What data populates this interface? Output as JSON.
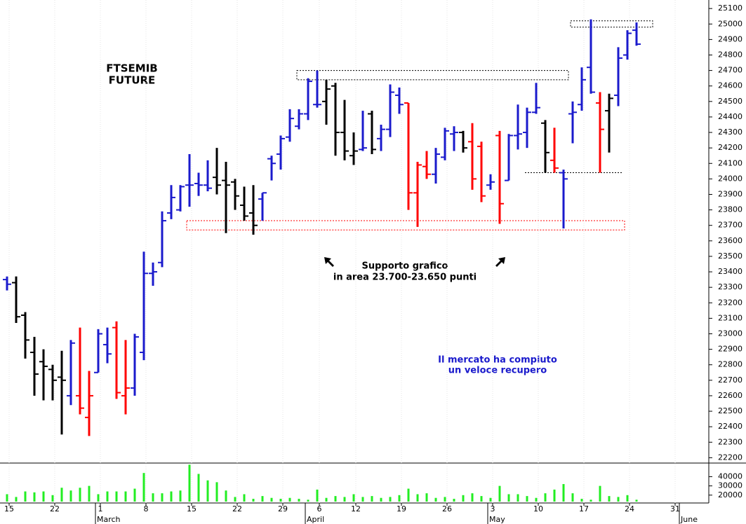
{
  "chart_data": [
    {
      "type": "ohlc",
      "title_lines": [
        "FTSEMIB",
        "FUTURE"
      ],
      "annotations": [
        {
          "lines": [
            "Supporto grafico",
            "in area 23.700-23.650 punti"
          ],
          "color": "#000000"
        },
        {
          "lines": [
            "Il mercato ha compiuto",
            "un veloce recupero"
          ],
          "color": "#1a1acc"
        }
      ],
      "ylim": [
        22170,
        25155
      ],
      "yticks": [
        22200,
        22300,
        22400,
        22500,
        22600,
        22700,
        22800,
        22900,
        23000,
        23100,
        23200,
        23300,
        23400,
        23500,
        23600,
        23700,
        23800,
        23900,
        24000,
        24100,
        24200,
        24300,
        24400,
        24500,
        24600,
        24700,
        24800,
        24900,
        25000,
        25100
      ],
      "open": [
        23350,
        23330,
        23120,
        22880,
        22820,
        22770,
        22720,
        22600,
        22600,
        22460,
        22750,
        22930,
        23040,
        22600,
        22650,
        22880,
        23390,
        23460,
        23780,
        23800,
        23960,
        23970,
        23960,
        24010,
        23990,
        23980,
        23830,
        23780,
        23870,
        24130,
        24160,
        24270,
        24340,
        24420,
        24480,
        24500,
        24600,
        24300,
        24150,
        24190,
        24420,
        24260,
        24320,
        24540,
        24490,
        23910,
        24080,
        24030,
        24140,
        24290,
        24300,
        24240,
        24210,
        23960,
        24280,
        23990,
        24280,
        24300,
        24430,
        24360,
        24120,
        24040,
        24420,
        24480,
        24720,
        24490,
        24440,
        24540,
        24800,
        24960,
        null,
        null,
        null,
        null,
        null,
        null
      ],
      "high": [
        23370,
        23370,
        23140,
        22980,
        22900,
        22800,
        22890,
        22960,
        23040,
        22760,
        23030,
        23040,
        23080,
        22960,
        23000,
        23530,
        23460,
        23790,
        23960,
        23960,
        24160,
        24040,
        24120,
        24200,
        24110,
        24000,
        23950,
        23960,
        23910,
        24150,
        24280,
        24450,
        24450,
        24650,
        24700,
        24640,
        24620,
        24510,
        24300,
        24440,
        24440,
        24350,
        24610,
        24590,
        24490,
        24110,
        24180,
        24200,
        24330,
        24340,
        24310,
        24360,
        24240,
        24030,
        24310,
        24290,
        24480,
        24460,
        24620,
        24380,
        24330,
        24060,
        24500,
        24720,
        25030,
        24560,
        24550,
        24850,
        24960,
        25010,
        null,
        null,
        null,
        null,
        null,
        null
      ],
      "low": [
        23280,
        23070,
        22840,
        22600,
        22570,
        22570,
        22350,
        22540,
        22480,
        22340,
        22750,
        22810,
        22580,
        22480,
        22600,
        22830,
        23310,
        23430,
        23740,
        23790,
        23820,
        23890,
        23920,
        23900,
        23650,
        23800,
        23730,
        23640,
        23730,
        23990,
        24060,
        24240,
        24320,
        24380,
        24460,
        24350,
        24150,
        24120,
        24090,
        24180,
        24160,
        24180,
        24270,
        24420,
        23800,
        23690,
        24000,
        23970,
        24120,
        24180,
        24170,
        23930,
        23850,
        23930,
        23710,
        23990,
        24190,
        24200,
        24420,
        24040,
        24040,
        23680,
        24230,
        24440,
        24550,
        24040,
        24170,
        24470,
        24770,
        24860,
        null,
        null,
        null,
        null,
        null,
        null
      ],
      "close": [
        23320,
        23110,
        22960,
        22740,
        22790,
        22700,
        22700,
        22940,
        22520,
        22600,
        23000,
        22870,
        22620,
        22650,
        22980,
        23390,
        23400,
        23730,
        23880,
        23950,
        23960,
        23960,
        23940,
        23960,
        23960,
        23890,
        23760,
        23700,
        23910,
        24100,
        24260,
        24390,
        24420,
        24630,
        24480,
        24580,
        24300,
        24180,
        24180,
        24200,
        24190,
        24320,
        24560,
        24480,
        23910,
        24090,
        24030,
        24160,
        24310,
        24300,
        24200,
        24000,
        23890,
        23980,
        23840,
        24280,
        24290,
        24430,
        24460,
        24170,
        24070,
        24000,
        24430,
        24640,
        24560,
        24320,
        24520,
        24780,
        24940,
        24870,
        null,
        null,
        null,
        null,
        null,
        null
      ],
      "colors": [
        "#1a1acc",
        "#000000",
        "#000000",
        "#000000",
        "#000000",
        "#000000",
        "#000000",
        "#1a1acc",
        "#ff0000",
        "#ff0000",
        "#1a1acc",
        "#1a1acc",
        "#ff0000",
        "#ff0000",
        "#1a1acc",
        "#1a1acc",
        "#1a1acc",
        "#1a1acc",
        "#1a1acc",
        "#1a1acc",
        "#1a1acc",
        "#1a1acc",
        "#1a1acc",
        "#000000",
        "#000000",
        "#000000",
        "#000000",
        "#000000",
        "#1a1acc",
        "#1a1acc",
        "#1a1acc",
        "#1a1acc",
        "#1a1acc",
        "#1a1acc",
        "#1a1acc",
        "#000000",
        "#000000",
        "#000000",
        "#000000",
        "#1a1acc",
        "#000000",
        "#1a1acc",
        "#1a1acc",
        "#1a1acc",
        "#ff0000",
        "#ff0000",
        "#ff0000",
        "#1a1acc",
        "#1a1acc",
        "#1a1acc",
        "#000000",
        "#ff0000",
        "#ff0000",
        "#1a1acc",
        "#ff0000",
        "#1a1acc",
        "#1a1acc",
        "#1a1acc",
        "#1a1acc",
        "#000000",
        "#ff0000",
        "#1a1acc",
        "#1a1acc",
        "#1a1acc",
        "#1a1acc",
        "#ff0000",
        "#000000",
        "#1a1acc",
        "#1a1acc",
        "#1a1acc",
        null,
        null,
        null,
        null,
        null,
        null
      ]
    },
    {
      "type": "bar",
      "color": "#22ee22",
      "ylim": [
        13000,
        54000
      ],
      "yticks": [
        20000,
        30000,
        40000
      ],
      "values": [
        21000,
        18000,
        24000,
        23000,
        24000,
        20000,
        28000,
        25000,
        28000,
        30000,
        21000,
        24000,
        24000,
        24000,
        27000,
        44000,
        22000,
        22000,
        24000,
        25000,
        53000,
        43000,
        36000,
        34000,
        25000,
        18000,
        21000,
        16000,
        19000,
        17000,
        16000,
        17000,
        16000,
        15000,
        26000,
        17000,
        19000,
        18000,
        21000,
        18000,
        19000,
        17000,
        18000,
        20000,
        27000,
        21000,
        22000,
        17000,
        18000,
        16000,
        20000,
        22000,
        19000,
        17000,
        30000,
        21000,
        21000,
        19000,
        17000,
        22000,
        26000,
        32000,
        22000,
        16000,
        15000,
        30000,
        19000,
        18000,
        20000,
        15000,
        null,
        null,
        null,
        null,
        null,
        null
      ],
      "categories": [
        "15",
        null,
        null,
        null,
        null,
        "22",
        null,
        null,
        null,
        null,
        "1",
        null,
        null,
        null,
        null,
        "8",
        null,
        null,
        null,
        null,
        "15",
        null,
        null,
        null,
        null,
        "22",
        null,
        null,
        null,
        null,
        "29",
        null,
        null,
        null,
        "6",
        null,
        null,
        null,
        "12",
        null,
        null,
        null,
        null,
        "19",
        null,
        null,
        null,
        null,
        "26",
        null,
        null,
        null,
        null,
        "3",
        null,
        null,
        null,
        null,
        "10",
        null,
        null,
        null,
        null,
        "17",
        null,
        null,
        null,
        null,
        "24",
        null,
        null,
        null,
        null,
        "31",
        null,
        null
      ],
      "month_labels": [
        {
          "label": "March",
          "index": 10
        },
        {
          "label": "April",
          "index": 33
        },
        {
          "label": "May",
          "index": 53
        },
        {
          "label": "June",
          "index": 74
        }
      ]
    }
  ]
}
